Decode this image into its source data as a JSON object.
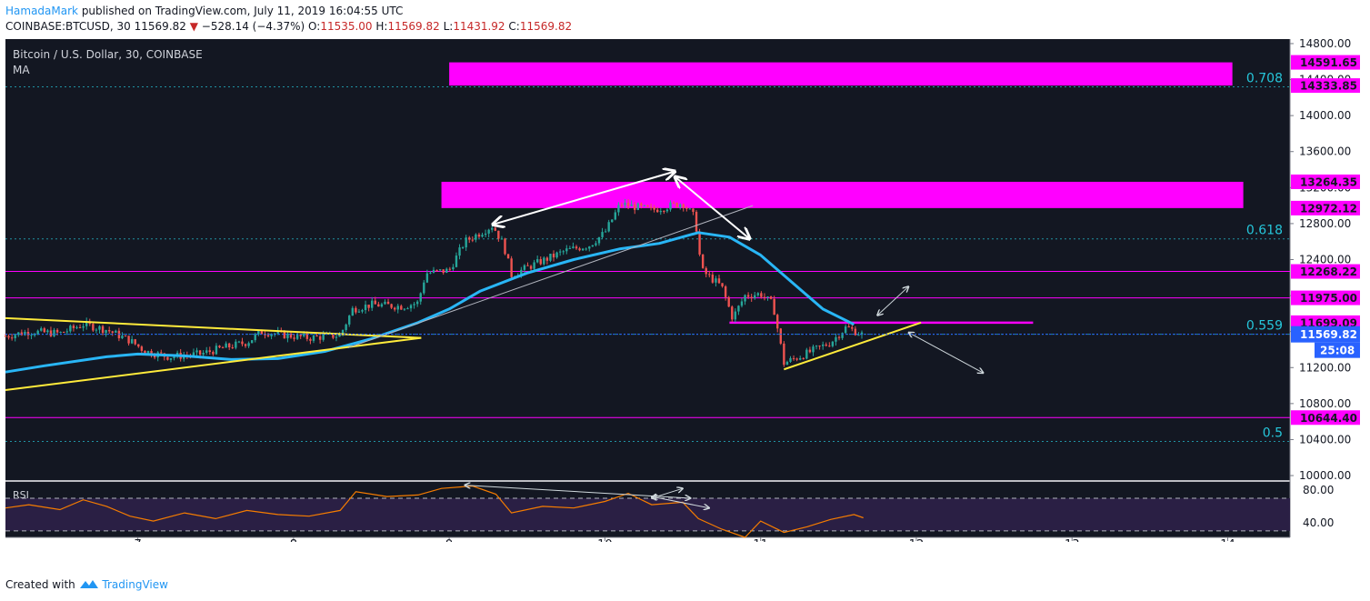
{
  "header": {
    "author": "HamadaMark",
    "published_text": "published on TradingView.com, July 11, 2019 16:04:55 UTC",
    "symbol": "COINBASE:BTCUSD, 30",
    "last": "11569.82",
    "change_arrow": "▼",
    "change": "−528.14 (−4.37%)",
    "open_label": "O:",
    "open": "11535.00",
    "high_label": "H:",
    "high": "11569.82",
    "low_label": "L:",
    "low": "11431.92",
    "close_label": "C:",
    "close": "11569.82"
  },
  "chart_title": "Bitcoin / U.S. Dollar, 30, COINBASE",
  "indicator_label": "MA",
  "rsi_label": "RSI",
  "footer": {
    "created_with": "Created with",
    "logo_text": "TradingView"
  },
  "colors": {
    "background": "#131722",
    "magenta": "#ff00ff",
    "fib": "#26c6da",
    "ma": "#29b6f6",
    "trend": "#ffeb3b",
    "up": "#26a69a",
    "down": "#ef5350",
    "rsi_line": "#f57c00",
    "rsi_fill": "#2a1f44",
    "price_tag": "#2962ff"
  },
  "chart_data": {
    "type": "candlestick",
    "x_ticks": [
      "7",
      "8",
      "9",
      "10",
      "11",
      "12",
      "13",
      "14"
    ],
    "x_range": [
      6.15,
      14.4
    ],
    "y_ticks": [
      "14800.00",
      "14400.00",
      "14000.00",
      "13600.00",
      "13200.00",
      "12800.00",
      "12400.00",
      "12000.00",
      "11600.00",
      "11200.00",
      "10800.00",
      "10400.00",
      "10000.00"
    ],
    "y_range": [
      9950,
      14850
    ],
    "price_levels": [
      "14591.65",
      "14333.85",
      "13264.35",
      "12972.12",
      "12268.22",
      "11975.00",
      "11699.09",
      "10644.40"
    ],
    "fib_levels": [
      {
        "label": "0.708",
        "price": 14320
      },
      {
        "label": "0.618",
        "price": 12630
      },
      {
        "label": "0.559",
        "price": 11570
      },
      {
        "label": "0.5",
        "price": 10380
      }
    ],
    "zones": [
      {
        "x": [
          8.95,
          14.1
        ],
        "low": 12972.12,
        "high": 13264.35
      },
      {
        "x": [
          9.0,
          14.03
        ],
        "low": 14333.85,
        "high": 14591.65
      }
    ],
    "current_price": "11569.82",
    "countdown": "25:08",
    "ohlc_path": [
      [
        6.15,
        11550
      ],
      [
        6.3,
        11600
      ],
      [
        6.5,
        11580
      ],
      [
        6.65,
        11680
      ],
      [
        6.8,
        11620
      ],
      [
        6.95,
        11500
      ],
      [
        7.05,
        11380
      ],
      [
        7.2,
        11320
      ],
      [
        7.4,
        11350
      ],
      [
        7.55,
        11420
      ],
      [
        7.7,
        11480
      ],
      [
        7.8,
        11600
      ],
      [
        7.95,
        11560
      ],
      [
        8.1,
        11530
      ],
      [
        8.3,
        11560
      ],
      [
        8.38,
        11850
      ],
      [
        8.5,
        11900
      ],
      [
        8.7,
        11880
      ],
      [
        8.8,
        11920
      ],
      [
        8.85,
        12250
      ],
      [
        9.0,
        12280
      ],
      [
        9.1,
        12600
      ],
      [
        9.28,
        12780
      ],
      [
        9.35,
        12560
      ],
      [
        9.4,
        12230
      ],
      [
        9.55,
        12350
      ],
      [
        9.75,
        12500
      ],
      [
        9.9,
        12560
      ],
      [
        10.0,
        12700
      ],
      [
        10.1,
        13020
      ],
      [
        10.3,
        12950
      ],
      [
        10.5,
        13030
      ],
      [
        10.58,
        12860
      ],
      [
        10.62,
        12280
      ],
      [
        10.75,
        12100
      ],
      [
        10.82,
        11750
      ],
      [
        10.9,
        12000
      ],
      [
        11.0,
        12020
      ],
      [
        11.08,
        11900
      ],
      [
        11.15,
        11250
      ],
      [
        11.3,
        11360
      ],
      [
        11.45,
        11480
      ],
      [
        11.55,
        11650
      ],
      [
        11.65,
        11569
      ]
    ],
    "ma_series": [
      [
        6.15,
        11150
      ],
      [
        6.4,
        11220
      ],
      [
        6.8,
        11320
      ],
      [
        7.0,
        11350
      ],
      [
        7.3,
        11330
      ],
      [
        7.6,
        11290
      ],
      [
        7.9,
        11300
      ],
      [
        8.2,
        11380
      ],
      [
        8.5,
        11520
      ],
      [
        8.8,
        11700
      ],
      [
        9.0,
        11850
      ],
      [
        9.2,
        12050
      ],
      [
        9.5,
        12250
      ],
      [
        9.8,
        12400
      ],
      [
        10.1,
        12520
      ],
      [
        10.35,
        12580
      ],
      [
        10.6,
        12700
      ],
      [
        10.8,
        12650
      ],
      [
        11.0,
        12450
      ],
      [
        11.2,
        12150
      ],
      [
        11.4,
        11850
      ],
      [
        11.6,
        11680
      ]
    ],
    "trend_lines": [
      {
        "color": "yellow",
        "points": [
          [
            6.15,
            11750
          ],
          [
            8.82,
            11530
          ]
        ]
      },
      {
        "color": "yellow",
        "points": [
          [
            6.15,
            10950
          ],
          [
            8.82,
            11530
          ]
        ]
      },
      {
        "color": "yellow",
        "points": [
          [
            11.15,
            11180
          ],
          [
            12.03,
            11700
          ]
        ]
      },
      {
        "color": "white",
        "points": [
          [
            8.35,
            11420
          ],
          [
            10.95,
            13000
          ]
        ]
      }
    ],
    "annotation_arrows": [
      {
        "from": [
          9.28,
          12790
        ],
        "to": [
          10.45,
          13380
        ]
      },
      {
        "from": [
          10.45,
          13320
        ],
        "to": [
          10.93,
          12630
        ]
      },
      {
        "from": [
          11.75,
          11780
        ],
        "to": [
          11.95,
          12100
        ]
      },
      {
        "from": [
          11.95,
          11590
        ],
        "to": [
          12.43,
          11140
        ]
      }
    ],
    "rsi": {
      "y_ticks": [
        "80.00",
        "40.00"
      ],
      "y_range": [
        22,
        90
      ],
      "band": [
        30,
        70
      ],
      "series": [
        [
          6.15,
          58
        ],
        [
          6.3,
          62
        ],
        [
          6.5,
          56
        ],
        [
          6.65,
          68
        ],
        [
          6.8,
          60
        ],
        [
          6.95,
          48
        ],
        [
          7.1,
          42
        ],
        [
          7.3,
          52
        ],
        [
          7.5,
          45
        ],
        [
          7.7,
          55
        ],
        [
          7.9,
          50
        ],
        [
          8.1,
          48
        ],
        [
          8.3,
          55
        ],
        [
          8.4,
          78
        ],
        [
          8.6,
          72
        ],
        [
          8.8,
          74
        ],
        [
          8.95,
          82
        ],
        [
          9.15,
          85
        ],
        [
          9.3,
          75
        ],
        [
          9.4,
          52
        ],
        [
          9.6,
          60
        ],
        [
          9.8,
          58
        ],
        [
          10.0,
          66
        ],
        [
          10.15,
          76
        ],
        [
          10.3,
          62
        ],
        [
          10.5,
          65
        ],
        [
          10.6,
          45
        ],
        [
          10.75,
          32
        ],
        [
          10.9,
          18
        ],
        [
          11.0,
          42
        ],
        [
          11.15,
          28
        ],
        [
          11.3,
          35
        ],
        [
          11.45,
          44
        ],
        [
          11.6,
          50
        ],
        [
          11.66,
          46
        ]
      ],
      "arrows": [
        {
          "from": [
            9.1,
            86
          ],
          "to": [
            10.55,
            70
          ]
        },
        {
          "from": [
            10.3,
            70
          ],
          "to": [
            10.5,
            82
          ]
        },
        {
          "from": [
            10.3,
            72
          ],
          "to": [
            10.67,
            58
          ]
        }
      ]
    }
  }
}
